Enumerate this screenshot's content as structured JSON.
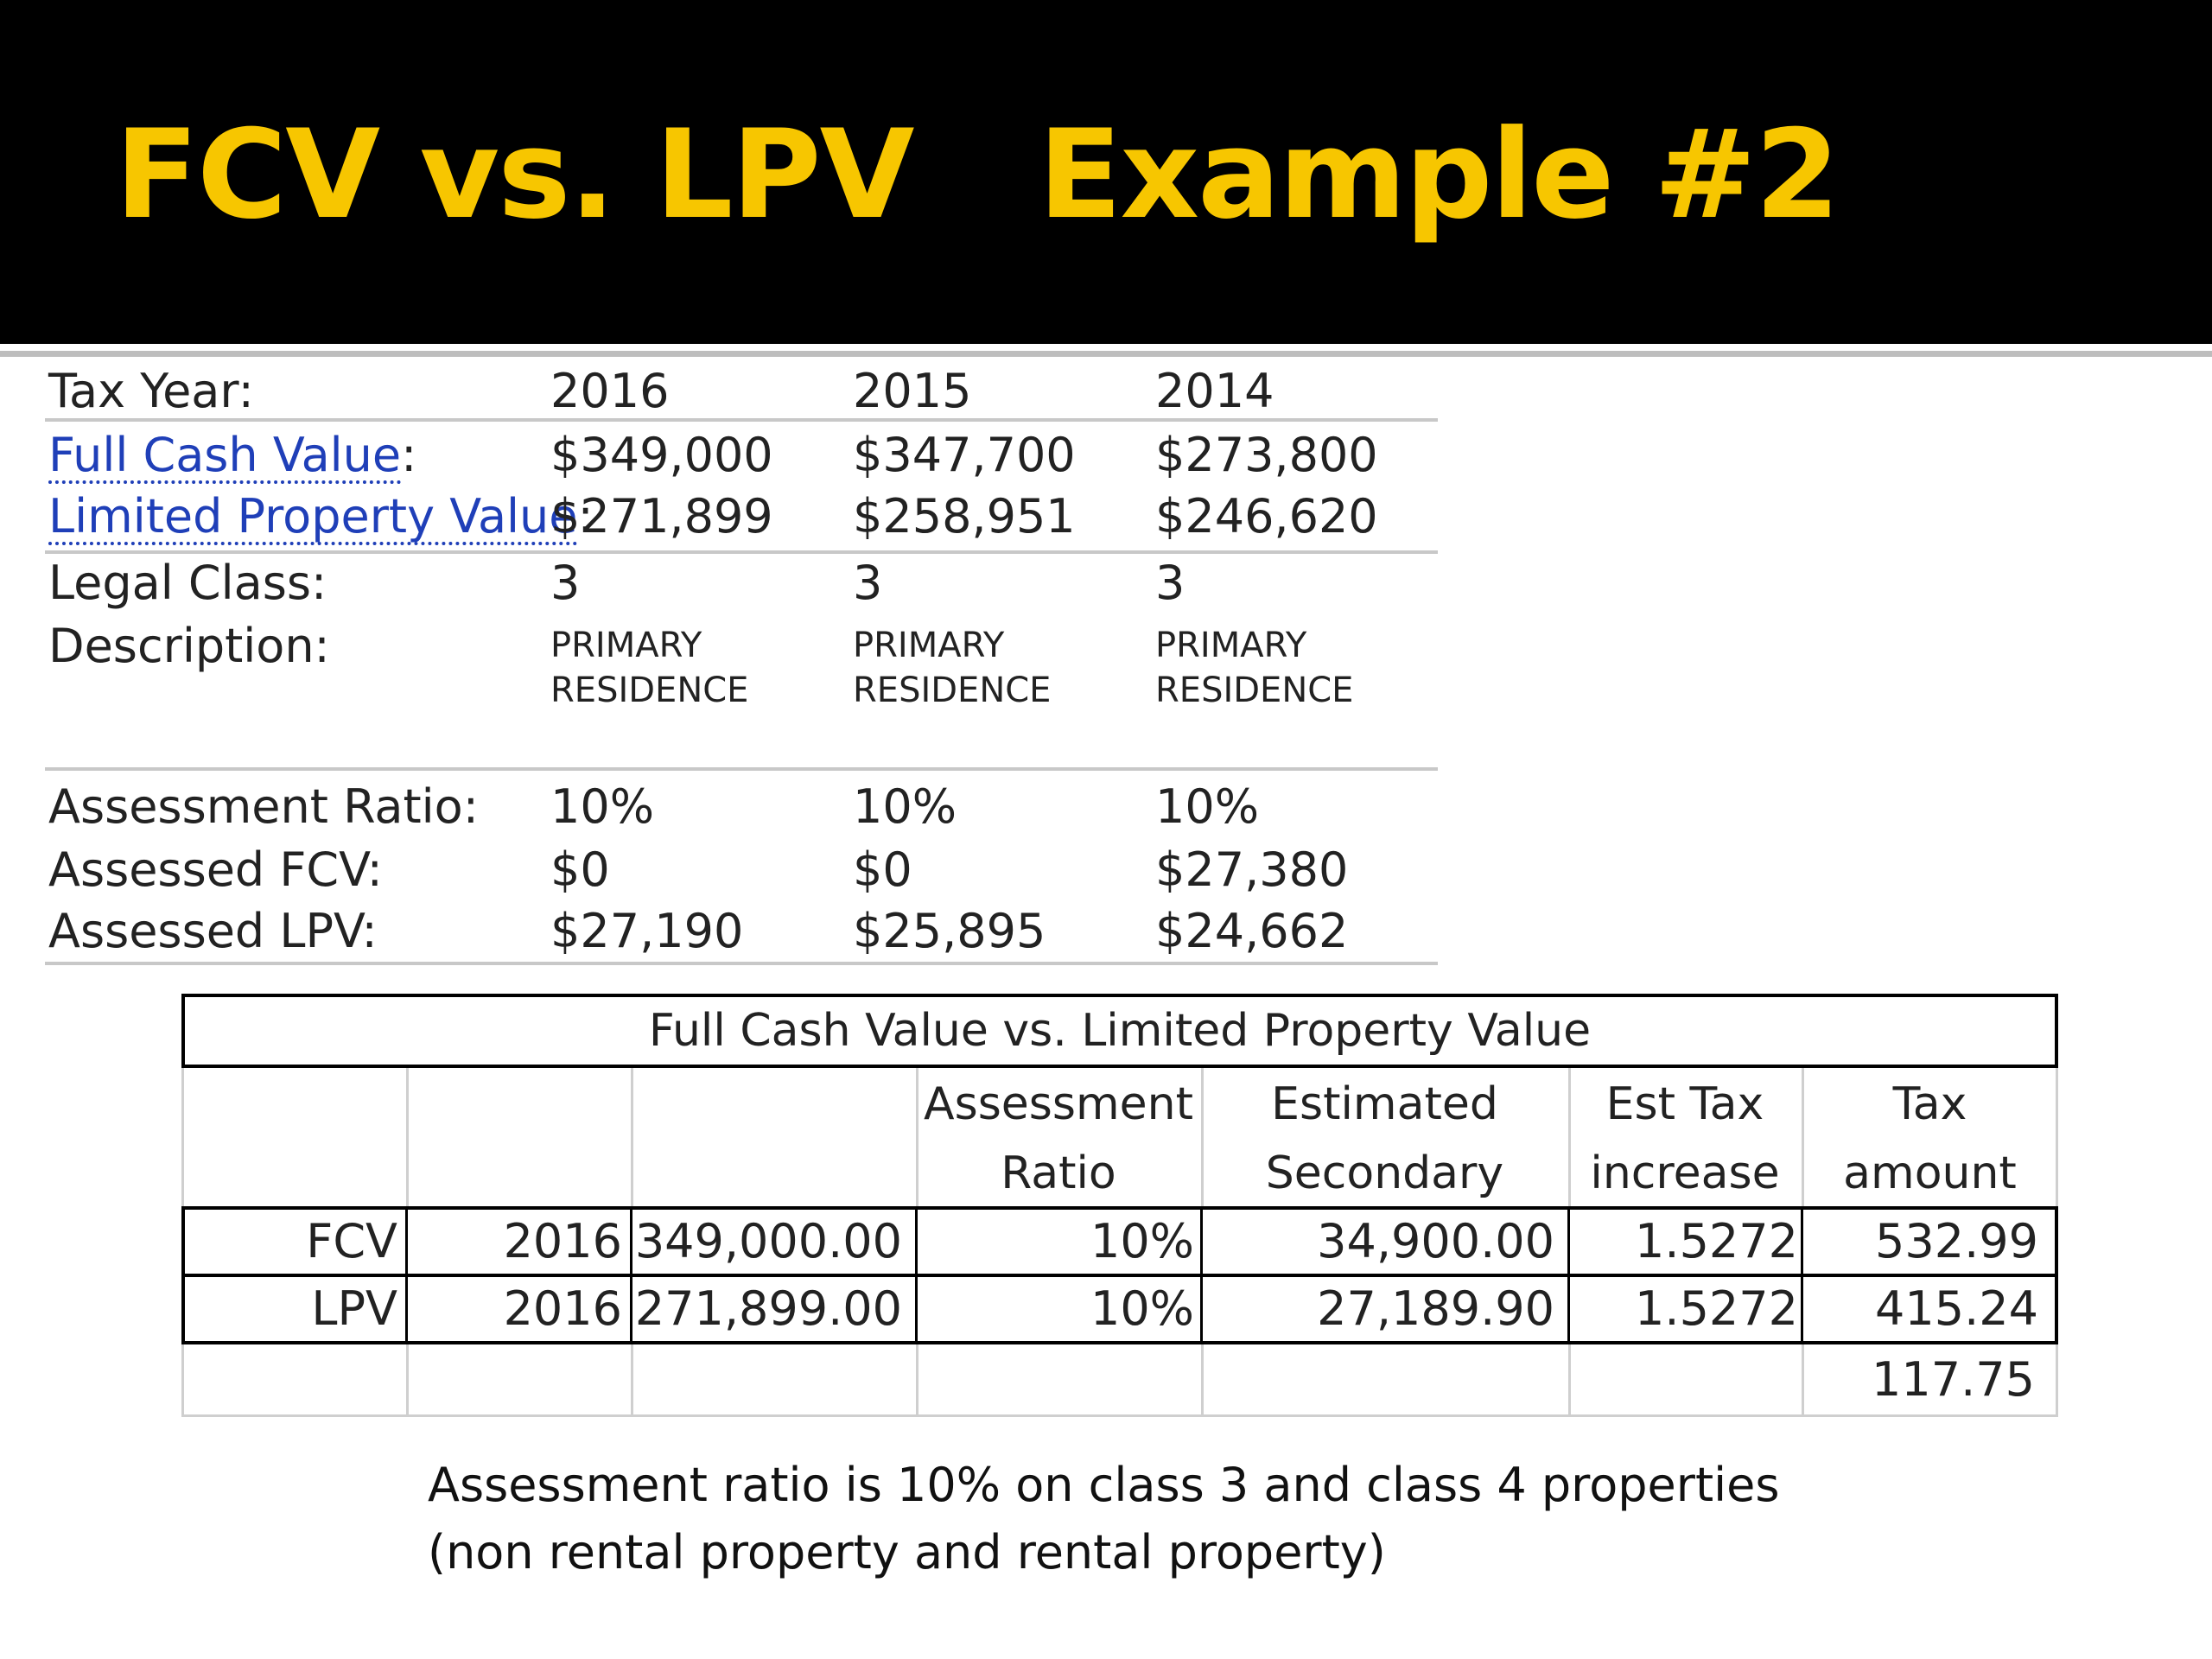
{
  "header": {
    "title_left": "FCV vs. LPV",
    "title_right": "Example #2",
    "title_color": "#f7c600",
    "background": "#000000"
  },
  "property": {
    "tax_year_label": "Tax Year:",
    "years": [
      "2016",
      "2015",
      "2014"
    ],
    "fcv_label": "Full Cash Value",
    "lpv_label": "Limited Property Value",
    "colon": ":",
    "fcv": [
      "$349,000",
      "$347,700",
      "$273,800"
    ],
    "lpv": [
      "$271,899",
      "$258,951",
      "$246,620"
    ],
    "legal_class_label": "Legal Class:",
    "legal_class": [
      "3",
      "3",
      "3"
    ],
    "description_label": "Description:",
    "description_line1": [
      "PRIMARY",
      "PRIMARY",
      "PRIMARY"
    ],
    "description_line2": [
      "RESIDENCE",
      "RESIDENCE",
      "RESIDENCE"
    ],
    "assessment_ratio_label": "Assessment Ratio:",
    "assessment_ratio": [
      "10%",
      "10%",
      "10%"
    ],
    "assessed_fcv_label": "Assessed FCV:",
    "assessed_fcv": [
      "$0",
      "$0",
      "$27,380"
    ],
    "assessed_lpv_label": "Assessed LPV:",
    "assessed_lpv": [
      "$27,190",
      "$25,895",
      "$24,662"
    ],
    "link_color": "#1f3fb8"
  },
  "comparison": {
    "caption": "Full Cash Value vs. Limited Property Value",
    "headers": {
      "assessment_1": "Assessment",
      "assessment_2": "Ratio",
      "estimated_1": "Estimated",
      "estimated_2": "Secondary",
      "est_tax_1": "Est Tax",
      "est_tax_2": "increase",
      "tax_amount_1": "Tax",
      "tax_amount_2": "amount"
    },
    "rows": [
      {
        "type": "FCV",
        "year": "2016",
        "value": "349,000.00",
        "ratio": "10%",
        "secondary": "34,900.00",
        "rate": "1.5272",
        "tax": "532.99"
      },
      {
        "type": "LPV",
        "year": "2016",
        "value": "271,899.00",
        "ratio": "10%",
        "secondary": "27,189.90",
        "rate": "1.5272",
        "tax": "415.24"
      }
    ],
    "difference": "117.75"
  },
  "note": {
    "line1": "Assessment ratio is 10% on class 3 and class 4 properties",
    "line2": "(non rental property and rental property)"
  }
}
